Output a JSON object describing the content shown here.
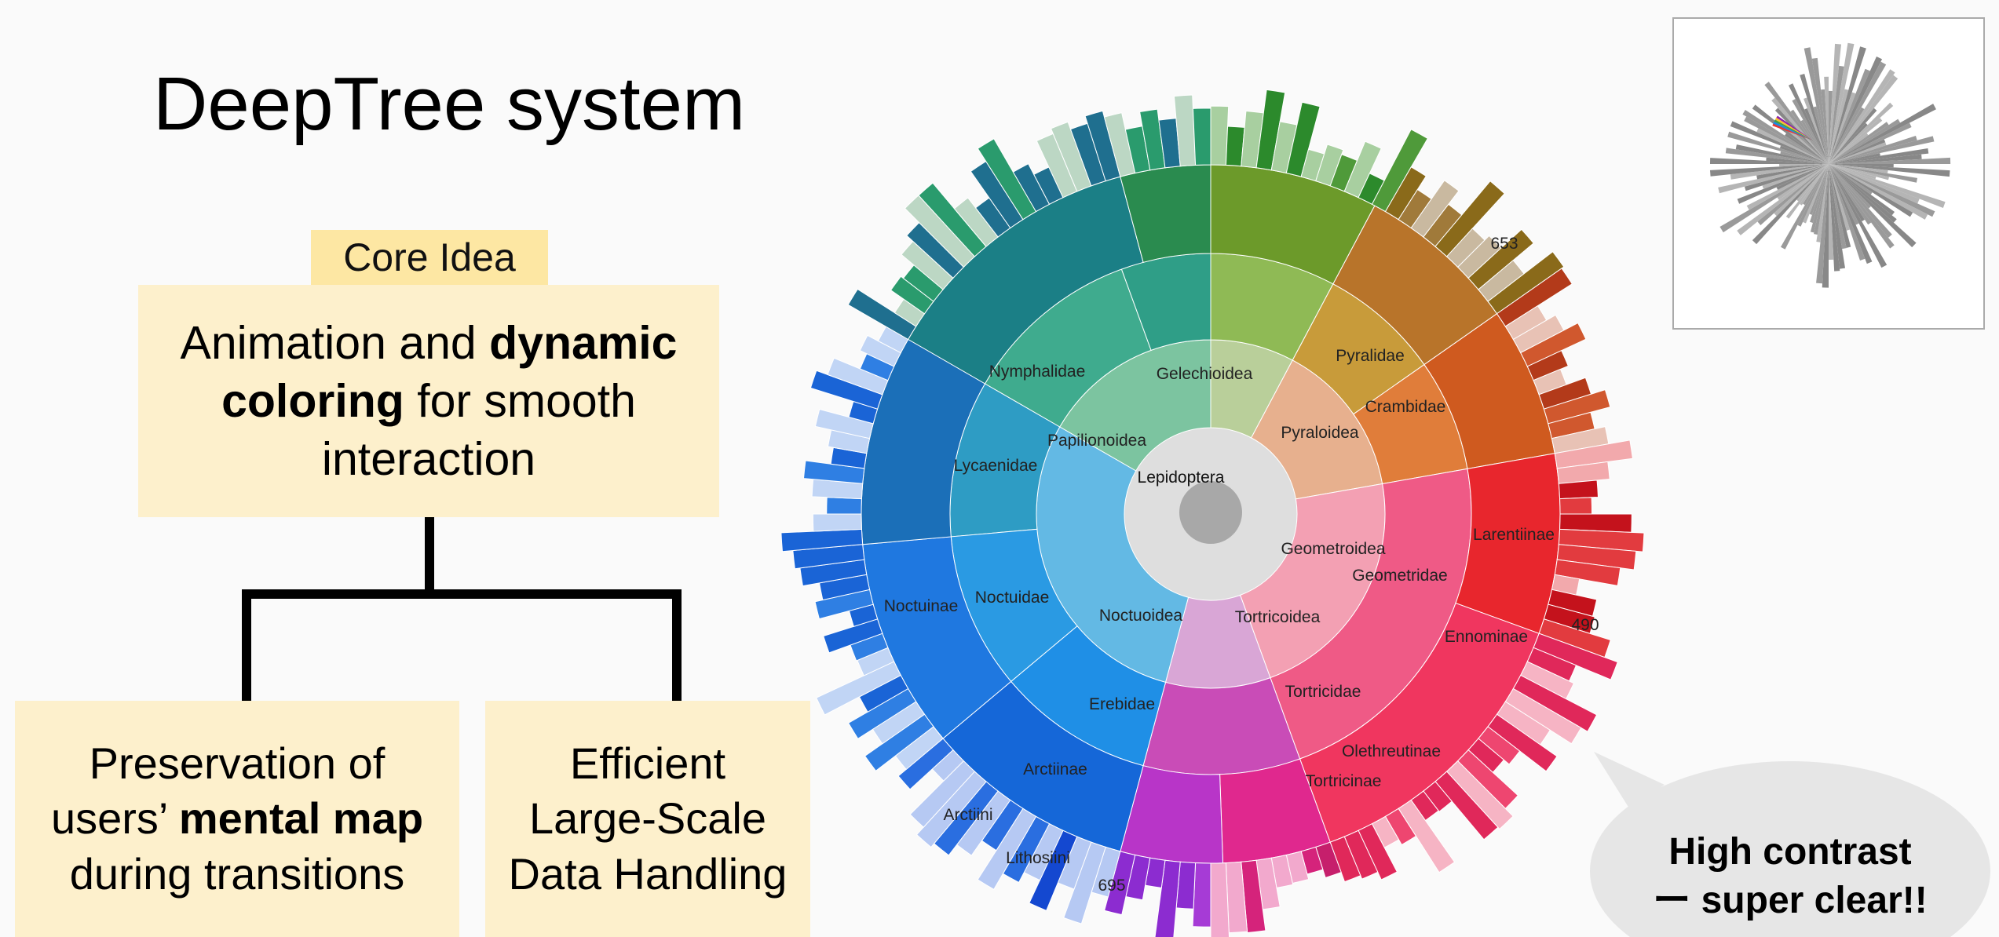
{
  "title": "DeepTree system",
  "core": {
    "label": "Core Idea",
    "line1_pre": "Animation and ",
    "line1_bold": "dynamic",
    "line2_bold": "coloring",
    "line2_post": " for smooth",
    "line3": "interaction"
  },
  "left_box": {
    "line1": "Preservation of",
    "line2_pre": "users’ ",
    "line2_bold": "mental map",
    "line3": "during transitions"
  },
  "right_box": {
    "line1": "Efficient",
    "line2": "Large-Scale",
    "line3": "Data Handling"
  },
  "sunburst": {
    "root": "Lepidoptera",
    "labels": [
      {
        "text": "Gelechioidea"
      },
      {
        "text": "Pyralidae"
      },
      {
        "text": "Crambidae"
      },
      {
        "text": "Pyraloidea"
      },
      {
        "text": "Nymphalidae"
      },
      {
        "text": "Papilionoidea"
      },
      {
        "text": "Lycaenidae"
      },
      {
        "text": "Geometroidea"
      },
      {
        "text": "Geometridae"
      },
      {
        "text": "Larentiinae"
      },
      {
        "text": "Noctuinae"
      },
      {
        "text": "Noctuidae"
      },
      {
        "text": "Noctuoidea"
      },
      {
        "text": "Tortricoidea"
      },
      {
        "text": "Ennominae"
      },
      {
        "text": "Tortricidae"
      },
      {
        "text": "Erebidae"
      },
      {
        "text": "Olethreutinae"
      },
      {
        "text": "Arctiinae"
      },
      {
        "text": "Tortricinae"
      },
      {
        "text": "Arctiini"
      },
      {
        "text": "Lithosiini"
      },
      {
        "text": "653"
      },
      {
        "text": "490"
      },
      {
        "text": "695"
      }
    ]
  },
  "bubble": {
    "line1": "High contrast",
    "line2": "ー super clear!!"
  },
  "colors": {
    "core_label_bg": "#fde7a3",
    "box_bg": "#fdf0cc",
    "bubble_bg": "#e6e6e6"
  }
}
